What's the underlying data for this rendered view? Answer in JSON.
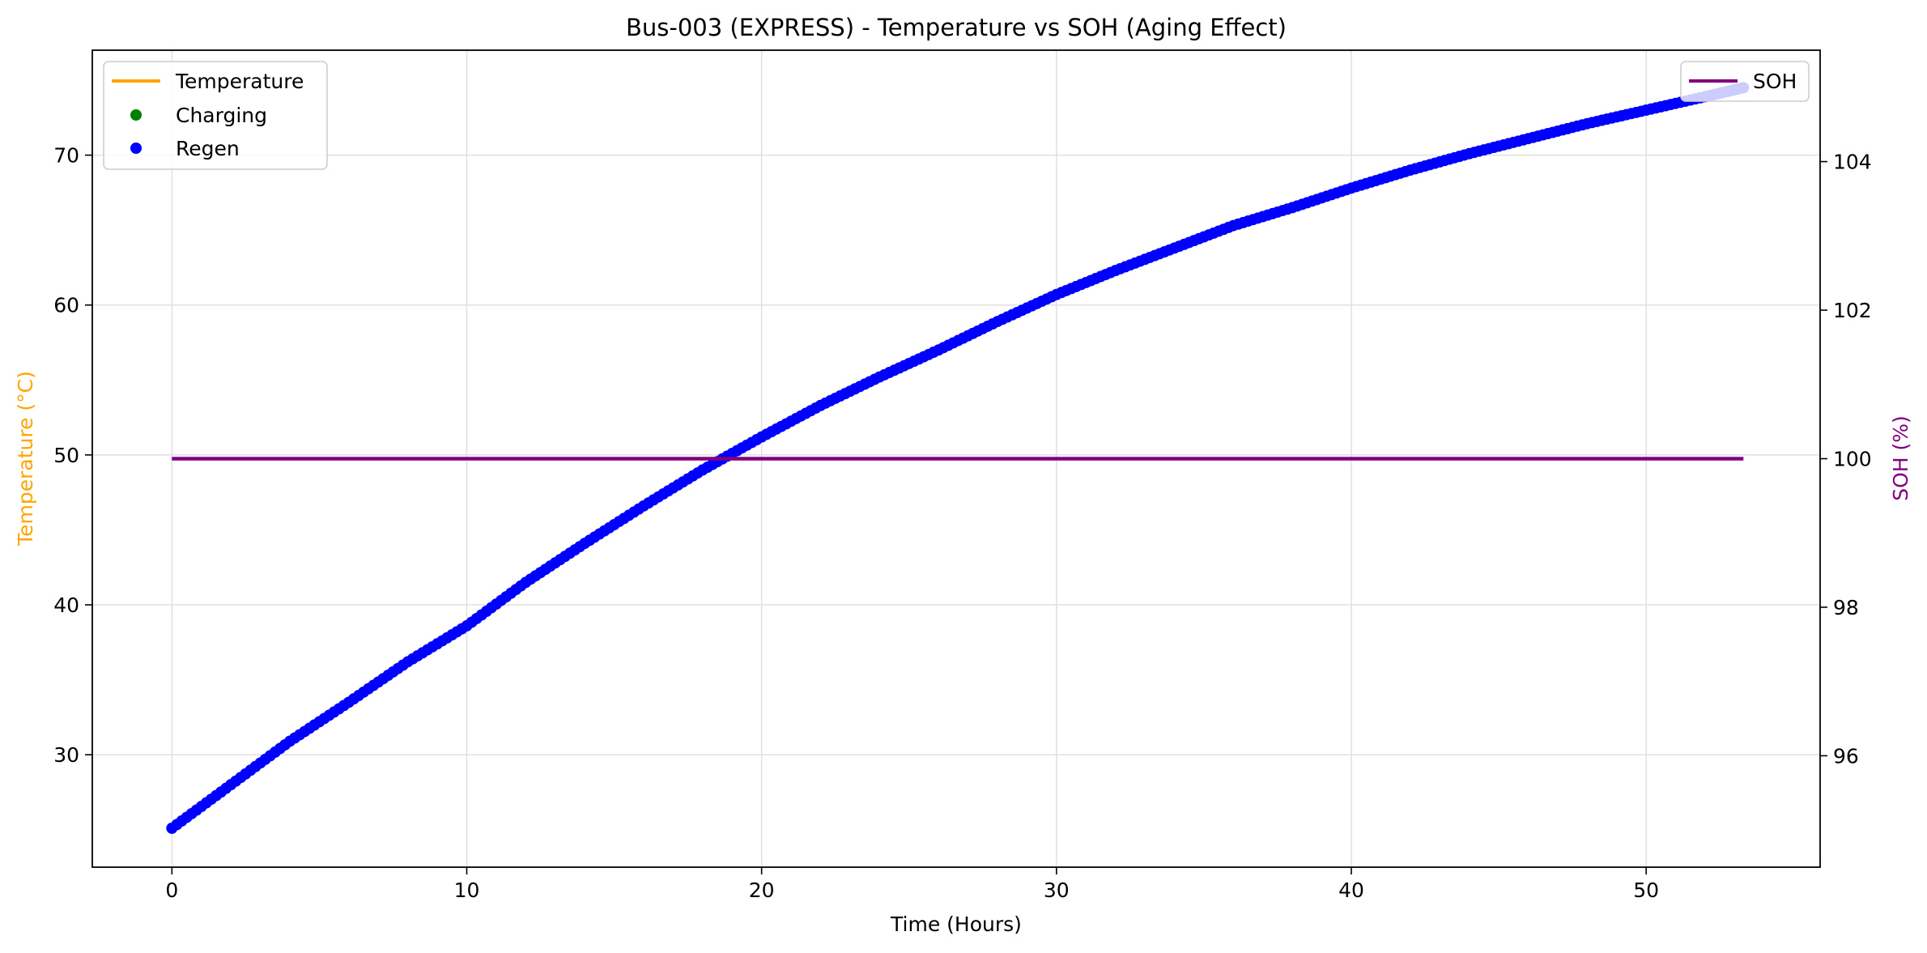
{
  "chart_data": {
    "type": "line",
    "title": "Bus-003 (EXPRESS) - Temperature vs SOH (Aging Effect)",
    "xlabel": "Time (Hours)",
    "ylabel": "Temperature (°C)",
    "ylabel_right": "SOH (%)",
    "xlim": [
      -2.7,
      55.9
    ],
    "ylim": [
      22.5,
      77.0
    ],
    "ylim_right": [
      94.5,
      105.5
    ],
    "x_ticks": [
      0,
      10,
      20,
      30,
      40,
      50
    ],
    "y_ticks": [
      30,
      40,
      50,
      60,
      70
    ],
    "y_ticks_right": [
      96,
      98,
      100,
      102,
      104
    ],
    "grid": true,
    "legend_left": {
      "placement": "top-left",
      "entries": [
        {
          "label": "Temperature",
          "kind": "line",
          "color": "#FFA500"
        },
        {
          "label": "Charging",
          "kind": "marker",
          "color": "#008000"
        },
        {
          "label": "Regen",
          "kind": "marker",
          "color": "#0000FF"
        }
      ]
    },
    "legend_right": {
      "placement": "top-right",
      "entries": [
        {
          "label": "SOH",
          "kind": "line",
          "color": "#800080"
        }
      ]
    },
    "series": [
      {
        "name": "Regen",
        "kind": "scatter",
        "axis": "left",
        "color": "#0000FF",
        "x": [
          0,
          2,
          4,
          6,
          8,
          10,
          12,
          14,
          16,
          18,
          20,
          22,
          24,
          26,
          28,
          30,
          32,
          34,
          36,
          38,
          40,
          42,
          44,
          46,
          48,
          50,
          52,
          53.3
        ],
        "y": [
          25.1,
          28.0,
          30.9,
          33.5,
          36.2,
          38.6,
          41.5,
          44.1,
          46.6,
          49.0,
          51.2,
          53.3,
          55.2,
          57.0,
          58.9,
          60.7,
          62.3,
          63.8,
          65.3,
          66.5,
          67.8,
          69.0,
          70.1,
          71.1,
          72.1,
          73.0,
          73.9,
          74.5
        ]
      },
      {
        "name": "SOH",
        "kind": "line",
        "axis": "right",
        "color": "#800080",
        "x": [
          0,
          53.3
        ],
        "y": [
          100,
          100
        ]
      }
    ]
  }
}
